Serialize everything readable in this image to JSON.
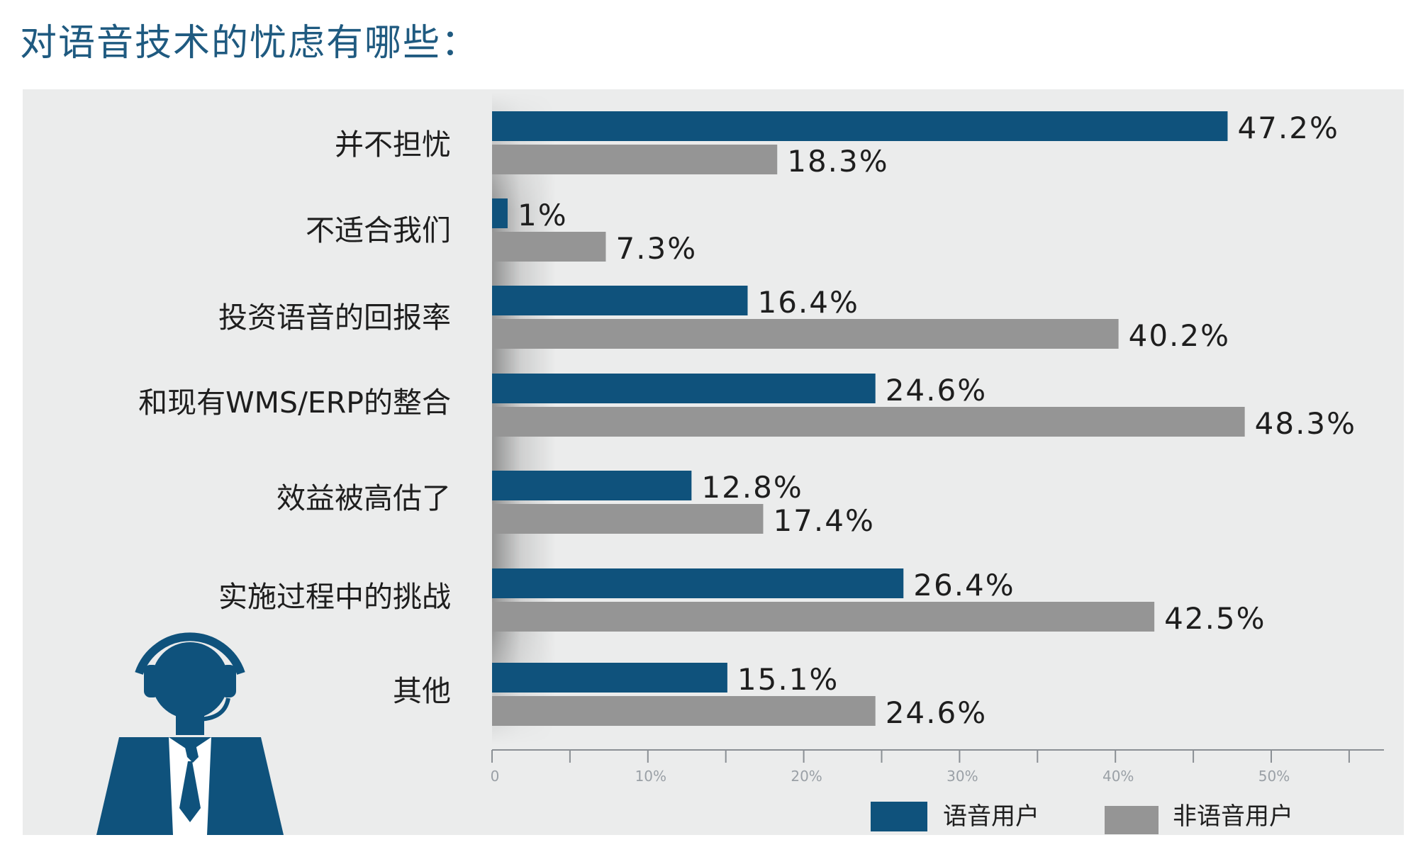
{
  "page": {
    "title": "对语音技术的忧虑有哪些："
  },
  "colors": {
    "voice": "#0f527c",
    "nonvoice": "#959595",
    "panel": "#ebecec",
    "title": "#1f5a80",
    "axis": "#8a8f94"
  },
  "icons": {
    "person": "headset-operator-icon"
  },
  "chart_data": {
    "type": "bar",
    "orientation": "horizontal",
    "title": "",
    "xlabel": "",
    "ylabel": "",
    "categories": [
      "并不担忧",
      "不适合我们",
      "投资语音的回报率",
      "和现有WMS/ERP的整合",
      "效益被高估了",
      "实施过程中的挑战",
      "其他"
    ],
    "series": [
      {
        "name": "语音用户",
        "values": [
          47.2,
          1,
          16.4,
          24.6,
          12.8,
          26.4,
          15.1
        ],
        "labels": [
          "47.2%",
          "1%",
          "16.4%",
          "24.6%",
          "12.8%",
          "26.4%",
          "15.1%"
        ]
      },
      {
        "name": "非语音用户",
        "values": [
          18.3,
          7.3,
          40.2,
          48.3,
          17.4,
          42.5,
          24.6
        ],
        "labels": [
          "18.3%",
          "7.3%",
          "40.2%",
          "48.3%",
          "17.4%",
          "42.5%",
          "24.6%"
        ]
      }
    ],
    "xlim": [
      0,
      56
    ],
    "xticks": [
      0,
      10,
      20,
      30,
      40,
      50
    ],
    "xtick_labels": [
      "0",
      "10%",
      "20%",
      "30%",
      "40%",
      "50%"
    ],
    "grid": false,
    "legend_position": "bottom-right"
  }
}
